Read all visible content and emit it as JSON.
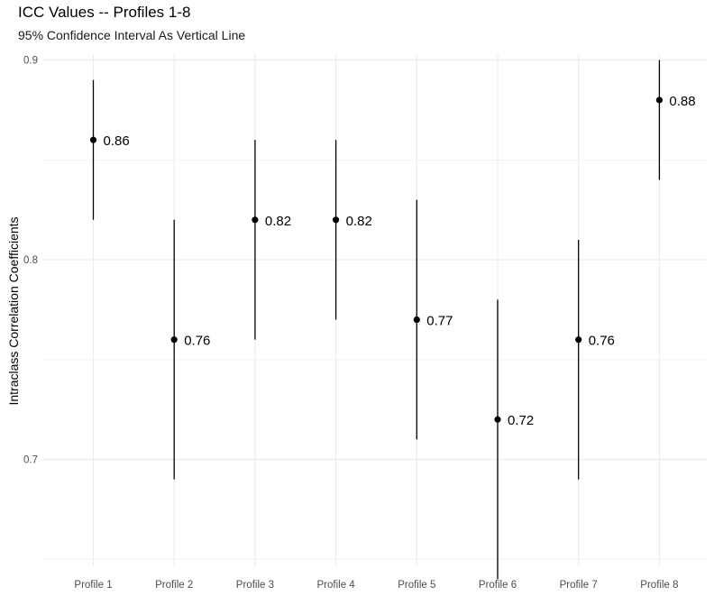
{
  "chart_data": {
    "type": "errorbar",
    "title": "ICC Values -- Profiles 1-8",
    "subtitle": "95% Confidence Interval As Vertical Line",
    "xlabel": "",
    "ylabel": "Intraclass Correlation Coefficients",
    "categories": [
      "Profile 1",
      "Profile 2",
      "Profile 3",
      "Profile 4",
      "Profile 5",
      "Profile 6",
      "Profile 7",
      "Profile 8"
    ],
    "values": [
      0.86,
      0.76,
      0.82,
      0.82,
      0.77,
      0.72,
      0.76,
      0.88
    ],
    "lower": [
      0.82,
      0.69,
      0.76,
      0.77,
      0.71,
      0.64,
      0.69,
      0.84
    ],
    "upper": [
      0.89,
      0.82,
      0.86,
      0.86,
      0.83,
      0.78,
      0.81,
      0.9
    ],
    "labels": [
      "0.86",
      "0.76",
      "0.82",
      "0.82",
      "0.77",
      "0.72",
      "0.76",
      "0.88"
    ],
    "ylim": [
      0.6465,
      0.903
    ],
    "yticks": [
      0.7,
      0.8,
      0.9
    ],
    "ytick_labels": [
      "0.7",
      "0.8",
      "0.9"
    ],
    "yminor": [
      0.75,
      0.85,
      0.65
    ],
    "grid": true,
    "colors": {
      "mark": "#000000",
      "grid_major": "#ebebeb",
      "grid_minor": "#f2f2f2"
    }
  }
}
